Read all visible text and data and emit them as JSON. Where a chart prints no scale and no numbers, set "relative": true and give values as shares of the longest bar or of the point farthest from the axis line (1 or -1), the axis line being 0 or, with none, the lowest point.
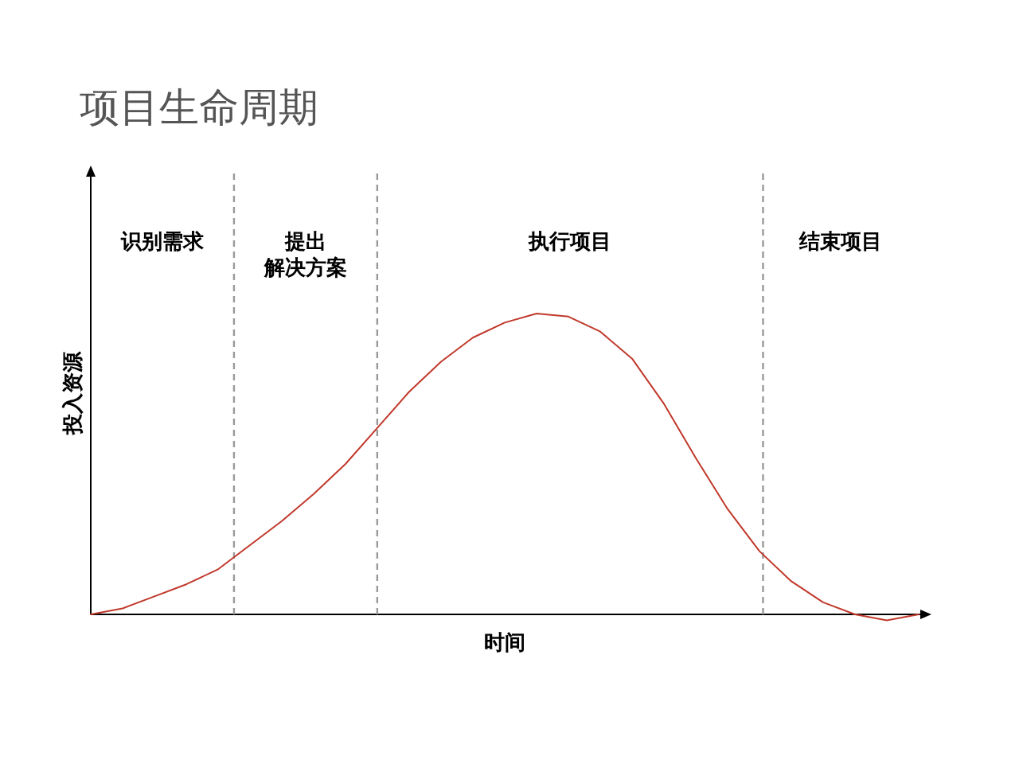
{
  "chart_data": {
    "type": "line",
    "title": "项目生命周期",
    "xlabel": "时间",
    "ylabel": "投入资源",
    "relative": true,
    "categories": [
      null,
      null,
      null,
      null,
      null,
      null,
      null,
      null,
      null,
      null,
      null,
      null,
      null,
      null,
      null,
      null,
      null,
      null,
      null,
      null,
      null,
      null,
      null,
      null,
      null,
      null,
      null
    ],
    "series": [
      {
        "color": "#c0392b",
        "values": [
          0,
          0.02,
          0.06,
          0.1,
          0.15,
          0.23,
          0.31,
          0.4,
          0.5,
          0.62,
          0.74,
          0.84,
          0.92,
          0.97,
          1,
          0.99,
          0.94,
          0.85,
          0.7,
          0.52,
          0.35,
          0.21,
          0.11,
          0.04,
          0,
          -0.02,
          0
        ]
      }
    ],
    "annotations": [
      "识别需求",
      "提出解决方案",
      "执行项目",
      "结束项目"
    ],
    "marker": "none",
    "line_style": "solid"
  }
}
